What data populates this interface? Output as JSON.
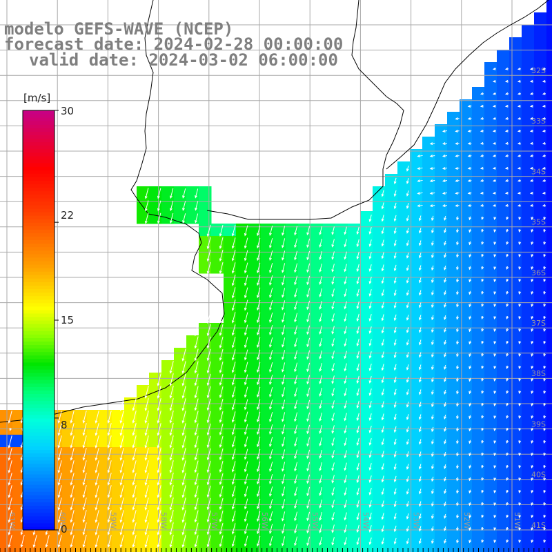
{
  "titles": {
    "model": "modelo GEFS-WAVE (NCEP)",
    "forecast": "forecast date: 2024-02-28 00:00:00",
    "valid": "valid date: 2024-03-02 06:00:00"
  },
  "colorbar": {
    "unit": "[m/s]",
    "min": 0,
    "max": 30,
    "ticks": [
      "30",
      "22",
      "15",
      "8",
      "0"
    ],
    "tick_values": [
      30,
      22,
      15,
      8,
      0
    ],
    "colors": [
      "#0000ff",
      "#0080ff",
      "#00e0ff",
      "#00ff80",
      "#00e000",
      "#80ff00",
      "#ffff00",
      "#ffa000",
      "#ff4000",
      "#ff0000",
      "#ff0060",
      "#c00080"
    ]
  },
  "map": {
    "lon_labels": [
      "61W",
      "60W",
      "59W",
      "58W",
      "57W",
      "56W",
      "55W",
      "54W",
      "53W",
      "52W",
      "51W"
    ],
    "lat_labels": [
      "32S",
      "33S",
      "34S",
      "35S",
      "36S",
      "37S",
      "38S",
      "39S",
      "40S",
      "41S"
    ],
    "lon_range": [
      -61,
      -50.3
    ],
    "lat_range": [
      -41.3,
      -30.5
    ],
    "land_color": "#ffffff",
    "coast_color": "#000000",
    "grid_color": "#b0b0b0"
  }
}
